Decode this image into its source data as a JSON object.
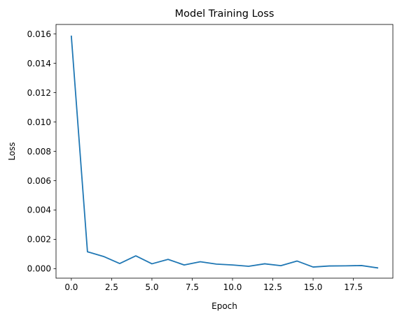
{
  "chart_data": {
    "type": "line",
    "title": "Model Training Loss",
    "xlabel": "Epoch",
    "ylabel": "Loss",
    "xlim": [
      -0.95,
      19.95
    ],
    "ylim": [
      -0.00065,
      0.01665
    ],
    "x_ticks": [
      0.0,
      2.5,
      5.0,
      7.5,
      10.0,
      12.5,
      15.0,
      17.5
    ],
    "x_tick_labels": [
      "0.0",
      "2.5",
      "5.0",
      "7.5",
      "10.0",
      "12.5",
      "15.0",
      "17.5"
    ],
    "y_ticks": [
      0.0,
      0.002,
      0.004,
      0.006,
      0.008,
      0.01,
      0.012,
      0.014,
      0.016
    ],
    "y_tick_labels": [
      "0.000",
      "0.002",
      "0.004",
      "0.006",
      "0.008",
      "0.010",
      "0.012",
      "0.014",
      "0.016"
    ],
    "grid": false,
    "series": [
      {
        "color": "#1f77b4",
        "x": [
          0,
          1,
          2,
          3,
          4,
          5,
          6,
          7,
          8,
          9,
          10,
          11,
          12,
          13,
          14,
          15,
          16,
          17,
          18,
          19
        ],
        "values": [
          0.01585,
          0.00115,
          0.00083,
          0.00035,
          0.00087,
          0.00033,
          0.00063,
          0.00025,
          0.00047,
          0.00031,
          0.00025,
          0.00016,
          0.00033,
          0.0002,
          0.00052,
          0.00011,
          0.00018,
          0.00019,
          0.00021,
          5e-05
        ]
      }
    ]
  }
}
